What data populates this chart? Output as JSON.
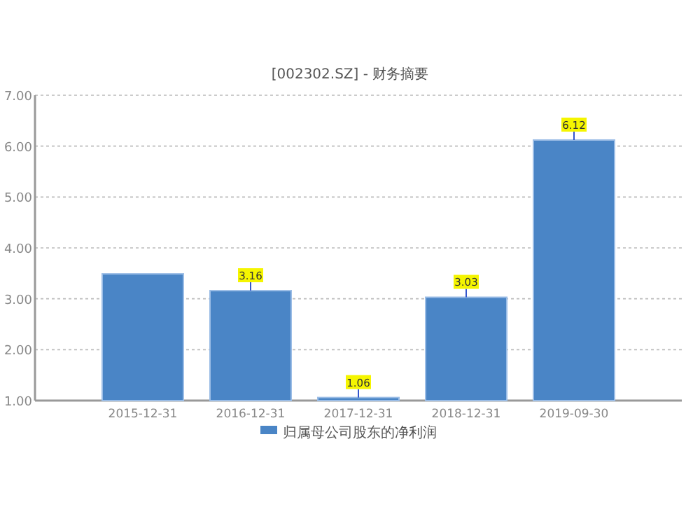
{
  "chart_data": {
    "type": "bar",
    "title": "[002302.SZ] - 财务摘要",
    "categories": [
      "2015-12-31",
      "2016-12-31",
      "2017-12-31",
      "2018-12-31",
      "2019-09-30"
    ],
    "series": [
      {
        "name": "归属母公司股东的净利润",
        "color": "#4a85c6",
        "values": [
          3.49,
          3.16,
          1.06,
          3.03,
          6.12
        ],
        "value_labels": [
          null,
          "3.16",
          "1.06",
          "3.03",
          "6.12"
        ]
      }
    ],
    "ylim": [
      1,
      7
    ],
    "yticks": [
      {
        "value": 1,
        "label": "1.00"
      },
      {
        "value": 2,
        "label": "2.00"
      },
      {
        "value": 3,
        "label": "3.00"
      },
      {
        "value": 4,
        "label": "4.00"
      },
      {
        "value": 5,
        "label": "5.00"
      },
      {
        "value": 6,
        "label": "6.00"
      },
      {
        "value": 7,
        "label": "7.00"
      }
    ],
    "grid": "y",
    "legend": "bottom"
  }
}
